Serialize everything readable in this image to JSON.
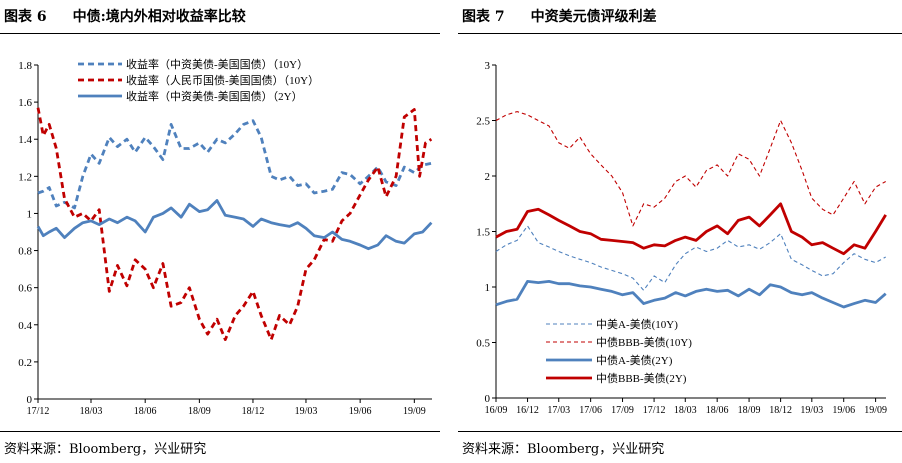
{
  "figures": [
    {
      "title_num": "图表 6",
      "title_text": "中债:境内外相对收益率比较",
      "source": "资料来源：Bloomberg，兴业研究"
    },
    {
      "title_num": "图表 7",
      "title_text": "中资美元债评级利差",
      "source": "资料来源：Bloomberg，兴业研究"
    }
  ],
  "chart_data": [
    {
      "type": "line",
      "title": "中债:境内外相对收益率比较",
      "xlabel": "",
      "ylabel": "",
      "ylim": [
        0,
        1.8
      ],
      "yticks": [
        0,
        0.2,
        0.4,
        0.6,
        0.8,
        1,
        1.2,
        1.4,
        1.6,
        1.8
      ],
      "ytick_labels": [
        "0",
        "0.2",
        "0.4",
        "0.6",
        "0.8",
        "1",
        "1.2",
        "1.4",
        "1.6",
        "1.8"
      ],
      "xlim": [
        "2017-12",
        "2019-10"
      ],
      "xtick_labels": [
        "17/12",
        "18/03",
        "18/06",
        "18/09",
        "18/12",
        "19/03",
        "19/06",
        "19/09"
      ],
      "xtick_values": [
        "2017-12",
        "2018-03",
        "2018-06",
        "2018-09",
        "2018-12",
        "2019-03",
        "2019-06",
        "2019-09"
      ],
      "legend_position": "top-center",
      "grid": false,
      "series": [
        {
          "name": "收益率（中资美债-美国国债）（10Y）",
          "color": "#4f81bd",
          "style": "dashed-thick",
          "x": [
            "2017-12-01",
            "2017-12-10",
            "2017-12-20",
            "2018-01-01",
            "2018-01-15",
            "2018-02-01",
            "2018-02-15",
            "2018-03-01",
            "2018-03-15",
            "2018-04-01",
            "2018-04-15",
            "2018-05-01",
            "2018-05-15",
            "2018-06-01",
            "2018-06-15",
            "2018-07-01",
            "2018-07-15",
            "2018-08-01",
            "2018-08-15",
            "2018-09-01",
            "2018-09-15",
            "2018-10-01",
            "2018-10-15",
            "2018-11-01",
            "2018-11-15",
            "2018-12-01",
            "2018-12-15",
            "2019-01-01",
            "2019-01-15",
            "2019-02-01",
            "2019-02-15",
            "2019-03-01",
            "2019-03-15",
            "2019-04-01",
            "2019-04-15",
            "2019-05-01",
            "2019-05-15",
            "2019-06-01",
            "2019-06-15",
            "2019-07-01",
            "2019-07-15",
            "2019-08-01",
            "2019-08-15",
            "2019-09-01",
            "2019-09-15",
            "2019-09-30"
          ],
          "values": [
            1.11,
            1.12,
            1.14,
            1.04,
            1.06,
            1.03,
            1.2,
            1.32,
            1.27,
            1.41,
            1.36,
            1.4,
            1.33,
            1.41,
            1.36,
            1.29,
            1.48,
            1.35,
            1.35,
            1.38,
            1.33,
            1.4,
            1.38,
            1.43,
            1.48,
            1.5,
            1.41,
            1.2,
            1.18,
            1.2,
            1.15,
            1.16,
            1.11,
            1.12,
            1.13,
            1.22,
            1.21,
            1.16,
            1.2,
            1.25,
            1.17,
            1.15,
            1.25,
            1.22,
            1.26,
            1.27
          ]
        },
        {
          "name": "收益率（人民币国债-美国国债）（10Y）",
          "color": "#c00000",
          "style": "dashed-thick",
          "x": [
            "2017-12-01",
            "2017-12-10",
            "2017-12-20",
            "2018-01-01",
            "2018-01-15",
            "2018-02-01",
            "2018-02-15",
            "2018-03-01",
            "2018-03-15",
            "2018-04-01",
            "2018-04-15",
            "2018-05-01",
            "2018-05-15",
            "2018-06-01",
            "2018-06-15",
            "2018-07-01",
            "2018-07-15",
            "2018-08-01",
            "2018-08-15",
            "2018-09-01",
            "2018-09-15",
            "2018-10-01",
            "2018-10-15",
            "2018-11-01",
            "2018-11-15",
            "2018-12-01",
            "2018-12-15",
            "2019-01-01",
            "2019-01-15",
            "2019-02-01",
            "2019-02-15",
            "2019-03-01",
            "2019-03-15",
            "2019-04-01",
            "2019-04-15",
            "2019-05-01",
            "2019-05-15",
            "2019-06-01",
            "2019-06-15",
            "2019-07-01",
            "2019-07-15",
            "2019-08-01",
            "2019-08-15",
            "2019-09-01",
            "2019-09-10",
            "2019-09-20",
            "2019-09-30"
          ],
          "values": [
            1.57,
            1.42,
            1.48,
            1.35,
            1.08,
            0.98,
            1.0,
            0.96,
            1.02,
            0.58,
            0.72,
            0.61,
            0.75,
            0.7,
            0.6,
            0.73,
            0.5,
            0.52,
            0.6,
            0.43,
            0.35,
            0.43,
            0.32,
            0.45,
            0.5,
            0.58,
            0.45,
            0.32,
            0.45,
            0.4,
            0.5,
            0.7,
            0.75,
            0.86,
            0.85,
            0.96,
            1.0,
            1.1,
            1.18,
            1.25,
            1.09,
            1.2,
            1.52,
            1.56,
            1.2,
            1.38,
            1.4
          ]
        },
        {
          "name": "收益率（中资美债-美国国债）（2Y）",
          "color": "#4f81bd",
          "style": "solid-thick",
          "x": [
            "2017-12-01",
            "2017-12-10",
            "2017-12-20",
            "2018-01-01",
            "2018-01-15",
            "2018-02-01",
            "2018-02-15",
            "2018-03-01",
            "2018-03-15",
            "2018-04-01",
            "2018-04-15",
            "2018-05-01",
            "2018-05-15",
            "2018-06-01",
            "2018-06-15",
            "2018-07-01",
            "2018-07-15",
            "2018-08-01",
            "2018-08-15",
            "2018-09-01",
            "2018-09-15",
            "2018-10-01",
            "2018-10-15",
            "2018-11-01",
            "2018-11-15",
            "2018-12-01",
            "2018-12-15",
            "2019-01-01",
            "2019-01-15",
            "2019-02-01",
            "2019-02-15",
            "2019-03-01",
            "2019-03-15",
            "2019-04-01",
            "2019-04-15",
            "2019-05-01",
            "2019-05-15",
            "2019-06-01",
            "2019-06-15",
            "2019-07-01",
            "2019-07-15",
            "2019-08-01",
            "2019-08-15",
            "2019-09-01",
            "2019-09-15",
            "2019-09-30"
          ],
          "values": [
            0.93,
            0.88,
            0.9,
            0.92,
            0.87,
            0.92,
            0.95,
            0.96,
            0.94,
            0.97,
            0.95,
            0.98,
            0.96,
            0.9,
            0.98,
            1.0,
            1.03,
            0.98,
            1.05,
            1.01,
            1.02,
            1.07,
            0.99,
            0.98,
            0.97,
            0.93,
            0.97,
            0.95,
            0.94,
            0.93,
            0.95,
            0.92,
            0.88,
            0.87,
            0.9,
            0.86,
            0.85,
            0.83,
            0.81,
            0.83,
            0.88,
            0.85,
            0.84,
            0.89,
            0.9,
            0.95
          ]
        }
      ]
    },
    {
      "type": "line",
      "title": "中资美元债评级利差",
      "xlabel": "",
      "ylabel": "",
      "ylim": [
        0,
        3
      ],
      "yticks": [
        0,
        0.5,
        1,
        1.5,
        2,
        2.5,
        3
      ],
      "ytick_labels": [
        "0",
        "0.5",
        "1",
        "1.5",
        "2",
        "2.5",
        "3"
      ],
      "xlim": [
        "2016-09",
        "2019-10"
      ],
      "xtick_labels": [
        "16/09",
        "16/12",
        "17/03",
        "17/06",
        "17/09",
        "17/12",
        "18/03",
        "18/06",
        "18/09",
        "18/12",
        "19/03",
        "19/06",
        "19/09"
      ],
      "xtick_values": [
        "2016-09",
        "2016-12",
        "2017-03",
        "2017-06",
        "2017-09",
        "2017-12",
        "2018-03",
        "2018-06",
        "2018-09",
        "2018-12",
        "2019-03",
        "2019-06",
        "2019-09"
      ],
      "legend_position": "bottom-left",
      "grid": false,
      "series": [
        {
          "name": "中美A-美债(10Y)",
          "color": "#4f81bd",
          "style": "dashed-thin",
          "x": [
            "2016-09-01",
            "2016-10-01",
            "2016-11-01",
            "2016-12-01",
            "2017-01-01",
            "2017-02-01",
            "2017-03-01",
            "2017-04-01",
            "2017-05-01",
            "2017-06-01",
            "2017-07-01",
            "2017-08-01",
            "2017-09-01",
            "2017-10-01",
            "2017-11-01",
            "2017-12-01",
            "2018-01-01",
            "2018-02-01",
            "2018-03-01",
            "2018-04-01",
            "2018-05-01",
            "2018-06-01",
            "2018-07-01",
            "2018-08-01",
            "2018-09-01",
            "2018-10-01",
            "2018-11-01",
            "2018-12-01",
            "2019-01-01",
            "2019-02-01",
            "2019-03-01",
            "2019-04-01",
            "2019-05-01",
            "2019-06-01",
            "2019-07-01",
            "2019-08-01",
            "2019-09-01",
            "2019-09-30"
          ],
          "values": [
            1.32,
            1.38,
            1.42,
            1.55,
            1.4,
            1.36,
            1.32,
            1.28,
            1.25,
            1.22,
            1.18,
            1.15,
            1.12,
            1.08,
            0.97,
            1.1,
            1.04,
            1.2,
            1.3,
            1.36,
            1.32,
            1.35,
            1.42,
            1.36,
            1.38,
            1.34,
            1.4,
            1.48,
            1.25,
            1.2,
            1.15,
            1.1,
            1.12,
            1.22,
            1.3,
            1.25,
            1.22,
            1.27
          ]
        },
        {
          "name": "中债BBB-美债(10Y)",
          "color": "#c00000",
          "style": "dashed-thin",
          "x": [
            "2016-09-01",
            "2016-10-01",
            "2016-11-01",
            "2016-12-01",
            "2017-01-01",
            "2017-02-01",
            "2017-03-01",
            "2017-04-01",
            "2017-05-01",
            "2017-06-01",
            "2017-07-01",
            "2017-08-01",
            "2017-09-01",
            "2017-10-01",
            "2017-11-01",
            "2017-12-01",
            "2018-01-01",
            "2018-02-01",
            "2018-03-01",
            "2018-04-01",
            "2018-05-01",
            "2018-06-01",
            "2018-07-01",
            "2018-08-01",
            "2018-09-01",
            "2018-10-01",
            "2018-11-01",
            "2018-12-01",
            "2019-01-01",
            "2019-02-01",
            "2019-03-01",
            "2019-04-01",
            "2019-05-01",
            "2019-06-01",
            "2019-07-01",
            "2019-08-01",
            "2019-09-01",
            "2019-09-30"
          ],
          "values": [
            2.5,
            2.55,
            2.58,
            2.55,
            2.5,
            2.45,
            2.3,
            2.25,
            2.35,
            2.2,
            2.1,
            2.0,
            1.85,
            1.55,
            1.75,
            1.72,
            1.8,
            1.95,
            2.0,
            1.9,
            2.05,
            2.1,
            2.0,
            2.2,
            2.15,
            2.0,
            2.25,
            2.5,
            2.3,
            2.05,
            1.8,
            1.7,
            1.65,
            1.8,
            1.95,
            1.75,
            1.9,
            1.95
          ]
        },
        {
          "name": "中债A-美债(2Y)",
          "color": "#4f81bd",
          "style": "solid-thick",
          "x": [
            "2016-09-01",
            "2016-10-01",
            "2016-11-01",
            "2016-12-01",
            "2017-01-01",
            "2017-02-01",
            "2017-03-01",
            "2017-04-01",
            "2017-05-01",
            "2017-06-01",
            "2017-07-01",
            "2017-08-01",
            "2017-09-01",
            "2017-10-01",
            "2017-11-01",
            "2017-12-01",
            "2018-01-01",
            "2018-02-01",
            "2018-03-01",
            "2018-04-01",
            "2018-05-01",
            "2018-06-01",
            "2018-07-01",
            "2018-08-01",
            "2018-09-01",
            "2018-10-01",
            "2018-11-01",
            "2018-12-01",
            "2019-01-01",
            "2019-02-01",
            "2019-03-01",
            "2019-04-01",
            "2019-05-01",
            "2019-06-01",
            "2019-07-01",
            "2019-08-01",
            "2019-09-01",
            "2019-09-30"
          ],
          "values": [
            0.84,
            0.87,
            0.89,
            1.05,
            1.04,
            1.05,
            1.03,
            1.03,
            1.01,
            1.0,
            0.98,
            0.96,
            0.93,
            0.95,
            0.85,
            0.88,
            0.9,
            0.95,
            0.92,
            0.96,
            0.98,
            0.96,
            0.97,
            0.92,
            0.98,
            0.93,
            1.02,
            1.0,
            0.95,
            0.93,
            0.95,
            0.9,
            0.86,
            0.82,
            0.85,
            0.88,
            0.86,
            0.94
          ]
        },
        {
          "name": "中债BBB-美债(2Y)",
          "color": "#c00000",
          "style": "solid-thick",
          "x": [
            "2016-09-01",
            "2016-10-01",
            "2016-11-01",
            "2016-12-01",
            "2017-01-01",
            "2017-02-01",
            "2017-03-01",
            "2017-04-01",
            "2017-05-01",
            "2017-06-01",
            "2017-07-01",
            "2017-08-01",
            "2017-09-01",
            "2017-10-01",
            "2017-11-01",
            "2017-12-01",
            "2018-01-01",
            "2018-02-01",
            "2018-03-01",
            "2018-04-01",
            "2018-05-01",
            "2018-06-01",
            "2018-07-01",
            "2018-08-01",
            "2018-09-01",
            "2018-10-01",
            "2018-11-01",
            "2018-12-01",
            "2019-01-01",
            "2019-02-01",
            "2019-03-01",
            "2019-04-01",
            "2019-05-01",
            "2019-06-01",
            "2019-07-01",
            "2019-08-01",
            "2019-09-01",
            "2019-09-30"
          ],
          "values": [
            1.45,
            1.5,
            1.52,
            1.68,
            1.7,
            1.65,
            1.6,
            1.55,
            1.5,
            1.48,
            1.43,
            1.42,
            1.41,
            1.4,
            1.35,
            1.38,
            1.37,
            1.42,
            1.45,
            1.42,
            1.5,
            1.55,
            1.48,
            1.6,
            1.63,
            1.55,
            1.65,
            1.75,
            1.5,
            1.45,
            1.38,
            1.4,
            1.35,
            1.3,
            1.38,
            1.35,
            1.5,
            1.65
          ]
        }
      ]
    }
  ]
}
